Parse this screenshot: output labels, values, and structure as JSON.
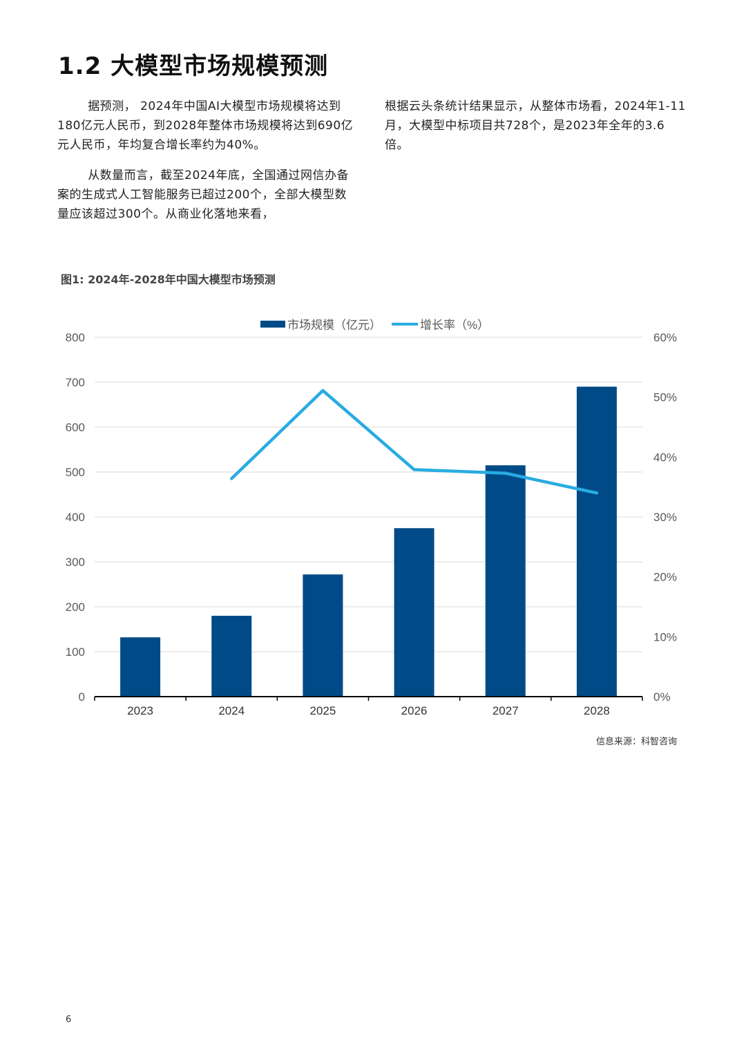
{
  "page": {
    "title": "1.2 大模型市场规模预测",
    "paragraphs_left": [
      "据预测， 2024年中国AI大模型市场规模将达到180亿元人民币，到2028年整体市场规模将达到690亿元人民币，年均复合增长率约为40%。",
      "从数量而言，截至2024年底，全国通过网信办备案的生成式人工智能服务已超过200个，全部大模型数量应该超过300个。从商业化落地来看，"
    ],
    "paragraphs_right": [
      "根据云头条统计结果显示，从整体市场看，2024年1-11月，大模型中标项目共728个，是2023年全年的3.6倍。"
    ],
    "figure_caption": "图1: 2024年-2028年中国大模型市场预测",
    "source": "信息来源：科智咨询",
    "page_number": "6"
  },
  "colors": {
    "bar": "#004b87",
    "line": "#29abe2",
    "grid": "#d9d9d9",
    "axis": "#000000",
    "tick_text": "#595959"
  },
  "chart_data": {
    "type": "bar",
    "title": "",
    "categories": [
      "2023",
      "2024",
      "2025",
      "2026",
      "2027",
      "2028"
    ],
    "series": [
      {
        "name": "市场规模（亿元）",
        "type": "bar",
        "axis": "left",
        "values": [
          132,
          180,
          272,
          375,
          515,
          690
        ]
      },
      {
        "name": "增长率（%）",
        "type": "line",
        "axis": "right",
        "values": [
          null,
          36.4,
          51.1,
          37.9,
          37.3,
          34.0
        ]
      }
    ],
    "y_left": {
      "min": 0,
      "max": 800,
      "ticks": [
        "0",
        "100",
        "200",
        "300",
        "400",
        "500",
        "600",
        "700",
        "800"
      ]
    },
    "y_right": {
      "min": 0,
      "max": 60,
      "ticks": [
        "0%",
        "10%",
        "20%",
        "30%",
        "40%",
        "50%",
        "60%"
      ]
    },
    "legend": [
      "市场规模（亿元）",
      "增长率（%）"
    ],
    "legend_position": "top-center",
    "grid": true
  }
}
